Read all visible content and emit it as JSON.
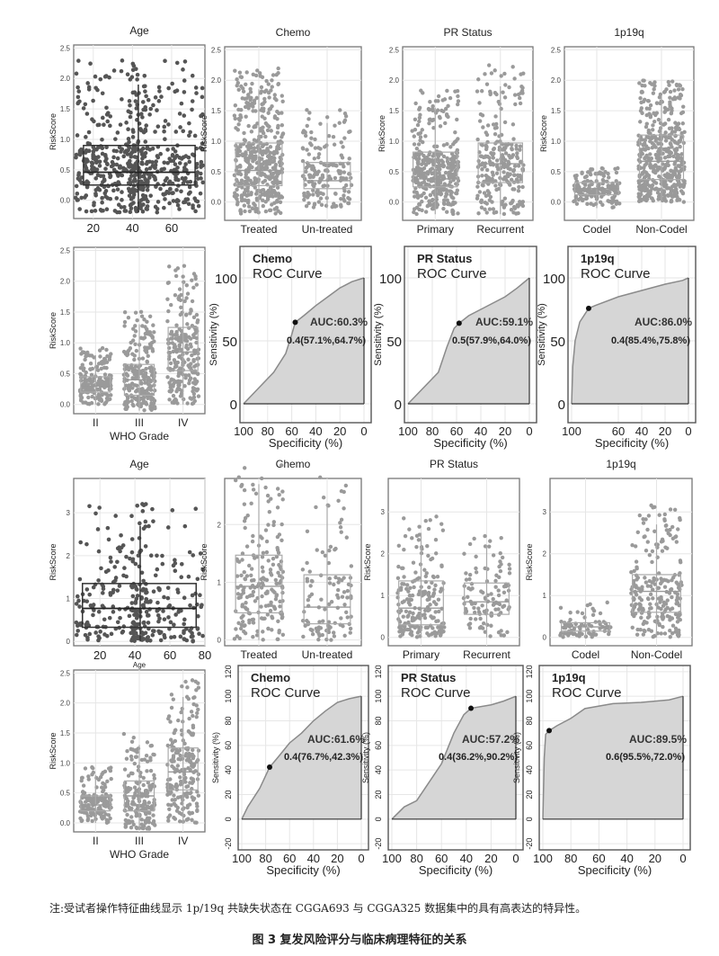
{
  "caption": {
    "note": "注:受试者操作特征曲线显示 1p/19q 共缺失状态在 CGGA693 与 CGGA325 数据集中的具有高表达的特异性。",
    "figure_title": "图 3  复发风险评分与临床病理特征的关系"
  },
  "colors": {
    "point_dark": "#555555",
    "point_light": "#9a9a9a",
    "roc_fill": "#d6d6d6",
    "grid": "#e6e6e6"
  },
  "chart_data": [
    {
      "type": "scatter-box",
      "title": "Age",
      "ylabel": "RiskScore",
      "xlabel": "",
      "yticks": [
        "0.0",
        "0.5",
        "1.0",
        "1.5",
        "2.0",
        "2.5"
      ],
      "ylim": [
        -0.3,
        2.55
      ],
      "xticks": [
        "20",
        "40",
        "60"
      ],
      "xlim": [
        10,
        77
      ],
      "box": {
        "x_from": 15,
        "x_to": 72,
        "x_whisker": 43,
        "q1": 0.25,
        "median": 0.46,
        "q3": 0.9,
        "lo": -0.2,
        "hi": 1.9
      },
      "n": 600
    },
    {
      "type": "box",
      "title": "Chemo",
      "ylabel": "RiskScore",
      "yticks": [
        "0.0",
        "0.5",
        "1.0",
        "1.5",
        "2.0",
        "2.5"
      ],
      "ylim": [
        -0.3,
        2.55
      ],
      "categories": [
        "Treated",
        "Un-treated"
      ],
      "boxes": [
        {
          "q1": 0.27,
          "median": 0.52,
          "q3": 0.97,
          "lo": -0.2,
          "hi": 1.85,
          "n": 450
        },
        {
          "q1": 0.22,
          "median": 0.35,
          "q3": 0.65,
          "lo": -0.1,
          "hi": 1.3,
          "n": 170
        }
      ]
    },
    {
      "type": "box",
      "title": "PR Status",
      "ylabel": "RiskScore",
      "yticks": [
        "0.0",
        "0.5",
        "1.0",
        "1.5",
        "2.0",
        "2.5"
      ],
      "ylim": [
        -0.3,
        2.55
      ],
      "categories": [
        "Primary",
        "Recurrent"
      ],
      "boxes": [
        {
          "q1": 0.25,
          "median": 0.38,
          "q3": 0.82,
          "lo": -0.2,
          "hi": 1.55,
          "n": 380
        },
        {
          "q1": 0.32,
          "median": 0.63,
          "q3": 0.97,
          "lo": -0.2,
          "hi": 1.9,
          "n": 260
        }
      ]
    },
    {
      "type": "box",
      "title": "1p19q",
      "ylabel": "RiskScore",
      "yticks": [
        "0.0",
        "0.5",
        "1.0",
        "1.5",
        "2.0",
        "2.5"
      ],
      "ylim": [
        -0.3,
        2.55
      ],
      "categories": [
        "Codel",
        "Non-Codel"
      ],
      "boxes": [
        {
          "q1": 0.12,
          "median": 0.22,
          "q3": 0.32,
          "lo": -0.1,
          "hi": 0.5,
          "n": 170
        },
        {
          "q1": 0.37,
          "median": 0.67,
          "q3": 1.1,
          "lo": 0.0,
          "hi": 1.75,
          "n": 460
        }
      ]
    },
    {
      "type": "box",
      "title": "",
      "ylabel": "RiskScore",
      "xlabel": "WHO Grade",
      "yticks": [
        "0.0",
        "0.5",
        "1.0",
        "1.5",
        "2.0",
        "2.5"
      ],
      "ylim": [
        -0.15,
        2.55
      ],
      "categories": [
        "II",
        "III",
        "IV"
      ],
      "boxes": [
        {
          "q1": 0.2,
          "median": 0.3,
          "q3": 0.45,
          "lo": 0.0,
          "hi": 0.8,
          "n": 180
        },
        {
          "q1": 0.15,
          "median": 0.4,
          "q3": 0.65,
          "lo": -0.1,
          "hi": 1.3,
          "n": 230
        },
        {
          "q1": 0.55,
          "median": 0.85,
          "q3": 1.25,
          "lo": 0.0,
          "hi": 2.0,
          "n": 230
        }
      ]
    },
    {
      "type": "roc",
      "title": "Chemo",
      "subtitle": "ROC Curve",
      "ylabel": "Sensitivity (%)",
      "xlabel": "Specificity (%)",
      "yticks": [
        "0",
        "50",
        "100"
      ],
      "ylim": [
        -15,
        125
      ],
      "xticks": [
        "100",
        "80",
        "60",
        "40",
        "20",
        "0"
      ],
      "auc": "AUC:60.3%",
      "threshold_label": "0.4(57.1%,64.7%)",
      "best_point": [
        57.1,
        64.7
      ],
      "curve": [
        [
          100,
          0
        ],
        [
          95,
          5
        ],
        [
          85,
          15
        ],
        [
          75,
          25
        ],
        [
          65,
          40
        ],
        [
          60,
          55
        ],
        [
          57.1,
          64.7
        ],
        [
          50,
          70
        ],
        [
          40,
          78
        ],
        [
          30,
          85
        ],
        [
          20,
          92
        ],
        [
          10,
          97
        ],
        [
          0,
          100
        ]
      ]
    },
    {
      "type": "roc",
      "title": "PR Status",
      "subtitle": "ROC Curve",
      "ylabel": "Sensitivity (%)",
      "xlabel": "Specificity (%)",
      "yticks": [
        "0",
        "50",
        "100"
      ],
      "ylim": [
        -15,
        125
      ],
      "xticks": [
        "100",
        "80",
        "60",
        "40",
        "20",
        "0"
      ],
      "auc": "AUC:59.1%",
      "threshold_label": "0.5(57.9%,64.0%)",
      "best_point": [
        57.9,
        64.0
      ],
      "curve": [
        [
          100,
          0
        ],
        [
          95,
          5
        ],
        [
          85,
          15
        ],
        [
          75,
          25
        ],
        [
          68,
          45
        ],
        [
          62,
          60
        ],
        [
          57.9,
          64
        ],
        [
          50,
          70
        ],
        [
          40,
          75
        ],
        [
          30,
          80
        ],
        [
          20,
          85
        ],
        [
          10,
          92
        ],
        [
          0,
          100
        ]
      ]
    },
    {
      "type": "roc",
      "title": "1p19q",
      "subtitle": "ROC Curve",
      "ylabel": "Sensitivity (%)",
      "xlabel": "Specificity (%)",
      "yticks": [
        "0",
        "50",
        "100"
      ],
      "ylim": [
        -15,
        125
      ],
      "xticks": [
        "100",
        "60",
        "40",
        "20",
        "0"
      ],
      "auc": "AUC:86.0%",
      "threshold_label": "0.4(85.4%,75.8%)",
      "best_point": [
        85.4,
        75.8
      ],
      "curve": [
        [
          100,
          0
        ],
        [
          99,
          30
        ],
        [
          97,
          50
        ],
        [
          93,
          65
        ],
        [
          85.4,
          75.8
        ],
        [
          80,
          78
        ],
        [
          60,
          85
        ],
        [
          40,
          90
        ],
        [
          20,
          95
        ],
        [
          5,
          98
        ],
        [
          0,
          100
        ]
      ]
    },
    {
      "type": "scatter-box",
      "title": "Age",
      "ylabel": "RiskScore",
      "xlabel": "Age",
      "yticks": [
        "0",
        "1",
        "2",
        "3"
      ],
      "ylim": [
        -0.1,
        3.8
      ],
      "xticks": [
        "20",
        "40",
        "60",
        "80"
      ],
      "xlim": [
        5,
        80
      ],
      "box": {
        "x_from": 10,
        "x_to": 75,
        "x_whisker": 43,
        "q1": 0.33,
        "median": 0.77,
        "q3": 1.35,
        "lo": 0.0,
        "hi": 2.7
      },
      "n": 320
    },
    {
      "type": "box",
      "title": "Chemo",
      "ylabel": "RiskScore",
      "yticks": [
        "0",
        "1",
        "2"
      ],
      "ylim": [
        -0.1,
        2.8
      ],
      "categories": [
        "Treated",
        "Un-treated"
      ],
      "boxes": [
        {
          "q1": 0.47,
          "median": 0.93,
          "q3": 1.47,
          "lo": 0.0,
          "hi": 2.7,
          "n": 200
        },
        {
          "q1": 0.28,
          "median": 0.57,
          "q3": 1.13,
          "lo": 0.0,
          "hi": 2.35,
          "n": 110
        }
      ]
    },
    {
      "type": "box",
      "title": "PR Status",
      "ylabel": "RiskScore",
      "yticks": [
        "0",
        "1",
        "2",
        "3"
      ],
      "ylim": [
        -0.2,
        3.8
      ],
      "categories": [
        "Primary",
        "Recurrent"
      ],
      "boxes": [
        {
          "q1": 0.3,
          "median": 0.7,
          "q3": 1.35,
          "lo": 0.0,
          "hi": 2.5,
          "n": 200
        },
        {
          "q1": 0.55,
          "median": 0.85,
          "q3": 1.3,
          "lo": 0.0,
          "hi": 2.2,
          "n": 110
        }
      ]
    },
    {
      "type": "box",
      "title": "1p19q",
      "ylabel": "RiskScore",
      "yticks": [
        "0",
        "1",
        "2",
        "3"
      ],
      "ylim": [
        -0.2,
        3.8
      ],
      "categories": [
        "Codel",
        "Non-Codel"
      ],
      "boxes": [
        {
          "q1": 0.15,
          "median": 0.25,
          "q3": 0.35,
          "lo": 0.0,
          "hi": 0.7,
          "n": 80
        },
        {
          "q1": 0.6,
          "median": 1.1,
          "q3": 1.5,
          "lo": 0.0,
          "hi": 2.7,
          "n": 230
        }
      ]
    },
    {
      "type": "box",
      "title": "",
      "ylabel": "RiskScore",
      "xlabel": "WHO Grade",
      "yticks": [
        "0.0",
        "0.5",
        "1.0",
        "1.5",
        "2.0",
        "2.5"
      ],
      "ylim": [
        -0.15,
        2.55
      ],
      "categories": [
        "II",
        "III",
        "IV"
      ],
      "boxes": [
        {
          "q1": 0.2,
          "median": 0.3,
          "q3": 0.45,
          "lo": 0.0,
          "hi": 0.8,
          "n": 150
        },
        {
          "q1": 0.2,
          "median": 0.45,
          "q3": 0.7,
          "lo": -0.1,
          "hi": 1.3,
          "n": 180
        },
        {
          "q1": 0.55,
          "median": 0.85,
          "q3": 1.25,
          "lo": 0.0,
          "hi": 2.1,
          "n": 200
        }
      ]
    },
    {
      "type": "roc",
      "title": "Chemo",
      "subtitle": "ROC Curve",
      "ylabel": "Sensitivity (%)",
      "xlabel": "Specificity (%)",
      "yticks": [
        "-20",
        "0",
        "20",
        "40",
        "60",
        "80",
        "100",
        "120"
      ],
      "ylim": [
        -25,
        125
      ],
      "xticks": [
        "100",
        "80",
        "60",
        "40",
        "20",
        "0"
      ],
      "auc": "AUC:61.6%",
      "threshold_label": "0.4(76.7%,42.3%)",
      "best_point": [
        76.7,
        42.3
      ],
      "curve": [
        [
          100,
          0
        ],
        [
          95,
          10
        ],
        [
          85,
          25
        ],
        [
          76.7,
          42.3
        ],
        [
          70,
          50
        ],
        [
          60,
          62
        ],
        [
          50,
          70
        ],
        [
          40,
          80
        ],
        [
          30,
          88
        ],
        [
          20,
          95
        ],
        [
          10,
          98
        ],
        [
          0,
          100
        ]
      ]
    },
    {
      "type": "roc",
      "title": "PR Status",
      "subtitle": "ROC Curve",
      "ylabel": "Sensitivity (%)",
      "xlabel": "Specificity (%)",
      "yticks": [
        "-20",
        "0",
        "20",
        "40",
        "60",
        "80",
        "100",
        "120"
      ],
      "ylim": [
        -25,
        125
      ],
      "xticks": [
        "100",
        "80",
        "60",
        "40",
        "20",
        "0"
      ],
      "auc": "AUC:57.2%",
      "threshold_label": "0.4(36.2%,90.2%)",
      "best_point": [
        36.2,
        90.2
      ],
      "curve": [
        [
          100,
          0
        ],
        [
          90,
          10
        ],
        [
          80,
          15
        ],
        [
          70,
          30
        ],
        [
          60,
          45
        ],
        [
          50,
          70
        ],
        [
          42,
          85
        ],
        [
          36.2,
          90.2
        ],
        [
          20,
          93
        ],
        [
          10,
          96
        ],
        [
          0,
          100
        ]
      ]
    },
    {
      "type": "roc",
      "title": "1p19q",
      "subtitle": "ROC Curve",
      "ylabel": "Sensitivity (%)",
      "xlabel": "Specificity (%)",
      "yticks": [
        "-20",
        "0",
        "20",
        "40",
        "60",
        "80",
        "100",
        "120"
      ],
      "ylim": [
        -25,
        125
      ],
      "xticks": [
        "100",
        "80",
        "60",
        "40",
        "20",
        "0"
      ],
      "auc": "AUC:89.5%",
      "threshold_label": "0.6(95.5%,72.0%)",
      "best_point": [
        95.5,
        72.0
      ],
      "curve": [
        [
          100,
          0
        ],
        [
          99,
          50
        ],
        [
          98,
          69
        ],
        [
          95.5,
          72
        ],
        [
          90,
          76
        ],
        [
          80,
          82
        ],
        [
          70,
          90
        ],
        [
          50,
          94
        ],
        [
          30,
          95
        ],
        [
          10,
          97
        ],
        [
          0,
          100
        ]
      ]
    }
  ]
}
